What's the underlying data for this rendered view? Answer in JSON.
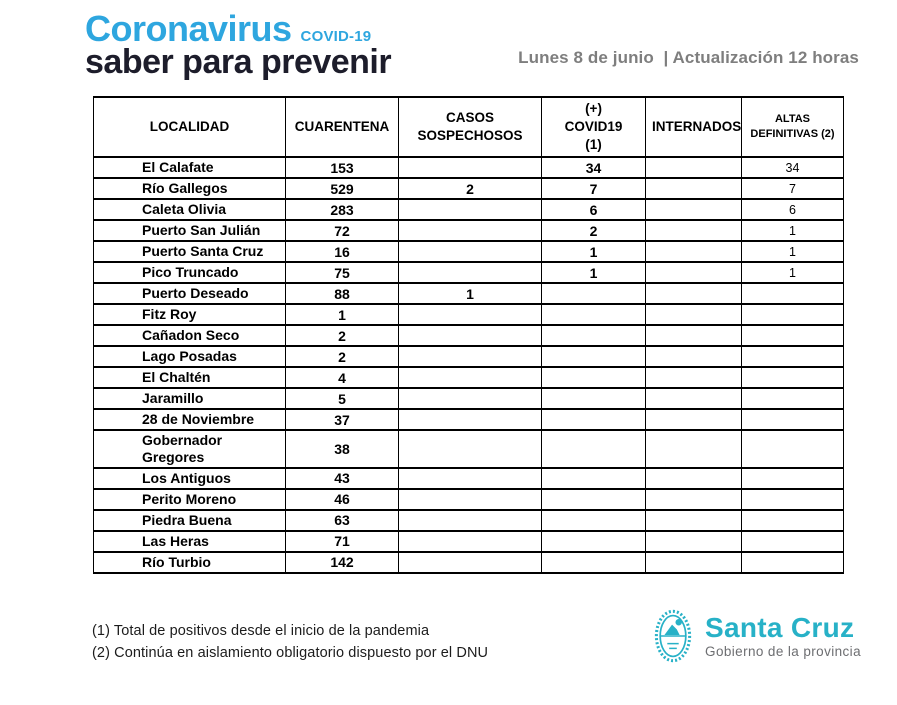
{
  "header": {
    "brand_title": "Coronavirus",
    "brand_covid": "COVID-19",
    "tagline": "saber para prevenir",
    "update_text": "Lunes 8 de junio  | Actualización 12 horas"
  },
  "table": {
    "columns": [
      "LOCALIDAD",
      "CUARENTENA",
      "CASOS SOSPECHOSOS",
      "(+) COVID19 (1)",
      "INTERNADOS",
      "ALTAS DEFINITIVAS (2)"
    ],
    "rows": [
      [
        "El Calafate",
        "153",
        "",
        "34",
        "",
        "34"
      ],
      [
        "Río Gallegos",
        "529",
        "2",
        "7",
        "",
        "7"
      ],
      [
        "Caleta Olivia",
        "283",
        "",
        "6",
        "",
        "6"
      ],
      [
        "Puerto San Julián",
        "72",
        "",
        "2",
        "",
        "1"
      ],
      [
        "Puerto Santa Cruz",
        "16",
        "",
        "1",
        "",
        "1"
      ],
      [
        "Pico Truncado",
        "75",
        "",
        "1",
        "",
        "1"
      ],
      [
        "Puerto Deseado",
        "88",
        "1",
        "",
        "",
        ""
      ],
      [
        "Fitz Roy",
        "1",
        "",
        "",
        "",
        ""
      ],
      [
        "Cañadon Seco",
        "2",
        "",
        "",
        "",
        ""
      ],
      [
        "Lago Posadas",
        "2",
        "",
        "",
        "",
        ""
      ],
      [
        "El Chaltén",
        "4",
        "",
        "",
        "",
        ""
      ],
      [
        "Jaramillo",
        "5",
        "",
        "",
        "",
        ""
      ],
      [
        "28 de Noviembre",
        "37",
        "",
        "",
        "",
        ""
      ],
      [
        "Gobernador Gregores",
        "38",
        "",
        "",
        "",
        ""
      ],
      [
        "Los Antiguos",
        "43",
        "",
        "",
        "",
        ""
      ],
      [
        "Perito Moreno",
        "46",
        "",
        "",
        "",
        ""
      ],
      [
        "Piedra Buena",
        "63",
        "",
        "",
        "",
        ""
      ],
      [
        "Las Heras",
        "71",
        "",
        "",
        "",
        ""
      ],
      [
        "Río Turbio",
        "142",
        "",
        "",
        "",
        ""
      ]
    ]
  },
  "footnotes": [
    "(1) Total de positivos desde el inicio de la pandemia",
    "(2) Continúa en aislamiento obligatorio dispuesto por el DNU"
  ],
  "logo": {
    "name": "Santa Cruz",
    "subtitle": "Gobierno de la provincia"
  },
  "colors": {
    "brand_blue": "#2EA6DF",
    "title_dark": "#1D1D2B",
    "update_gray": "#7E7E7E",
    "logo_cyan": "#27B1C7",
    "logo_subtitle_gray": "#6D6E71",
    "table_border": "#000000"
  }
}
